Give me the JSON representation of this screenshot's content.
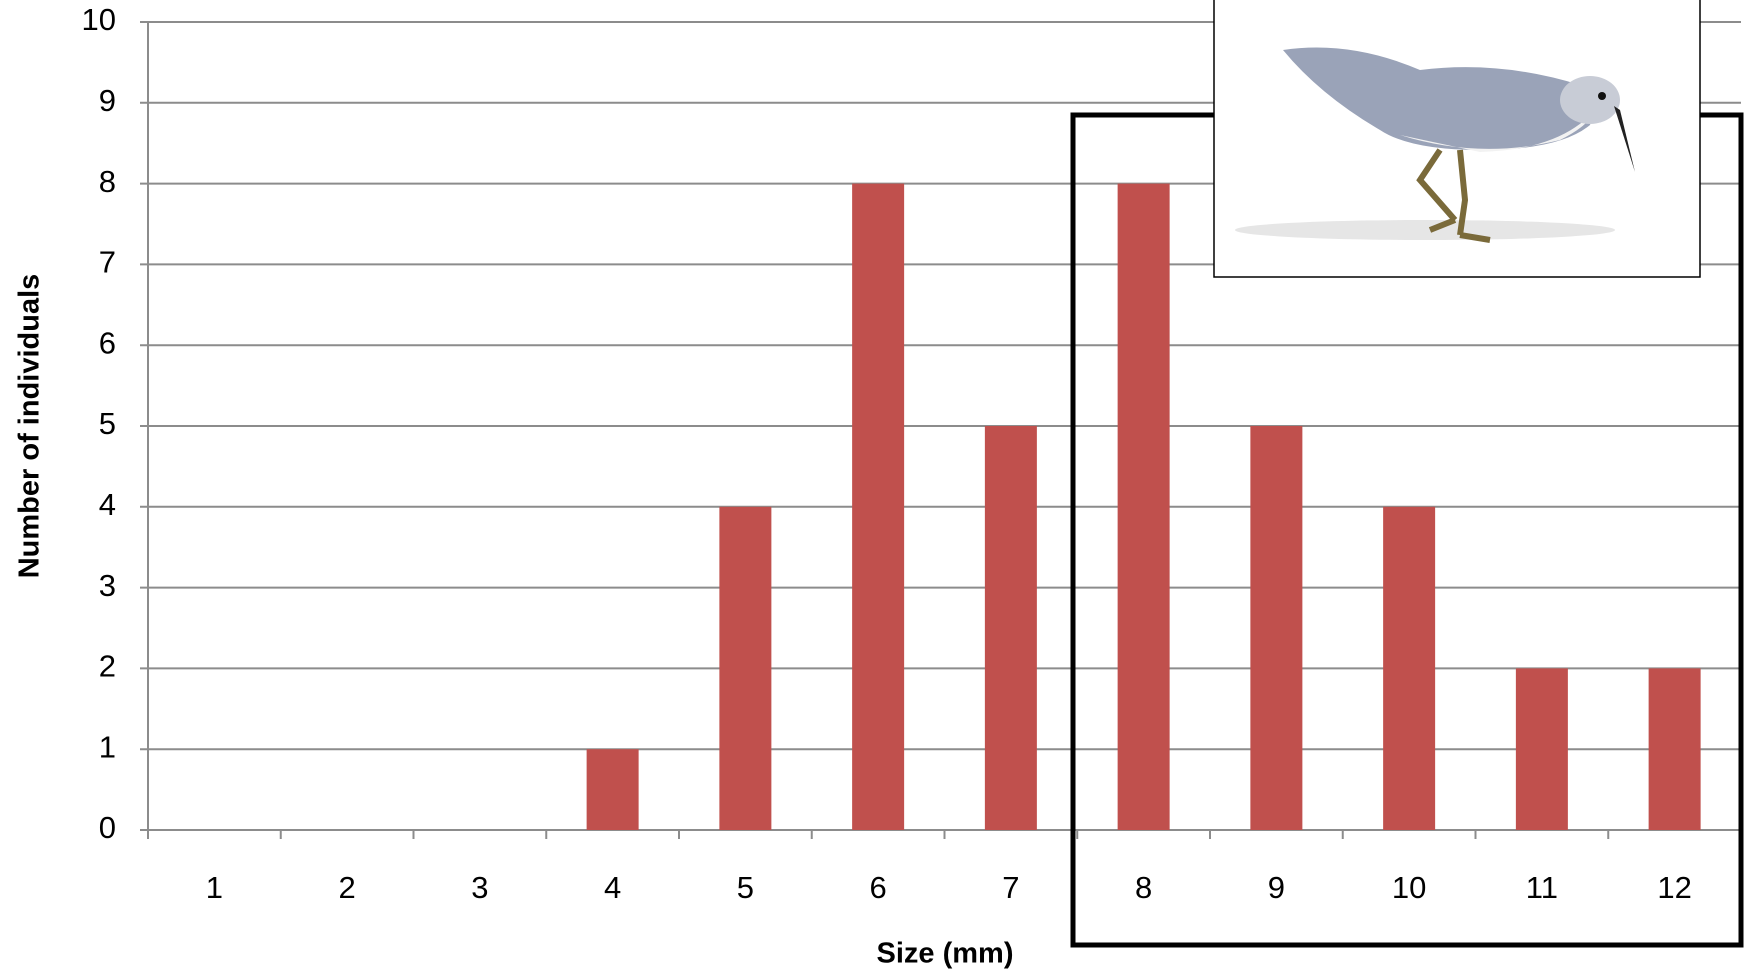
{
  "chart_data": {
    "type": "bar",
    "x_label": "Size (mm)",
    "y_label": "Number of individuals",
    "categories": [
      "1",
      "2",
      "3",
      "4",
      "5",
      "6",
      "7",
      "8",
      "9",
      "10",
      "11",
      "12"
    ],
    "values": [
      0,
      0,
      0,
      1,
      4,
      8,
      5,
      8,
      5,
      4,
      2,
      2
    ],
    "color": "#c0504d",
    "ylim": [
      0,
      10
    ],
    "yticks": [
      0,
      1,
      2,
      3,
      4,
      5,
      6,
      7,
      8,
      9,
      10
    ],
    "grid": true
  }
}
